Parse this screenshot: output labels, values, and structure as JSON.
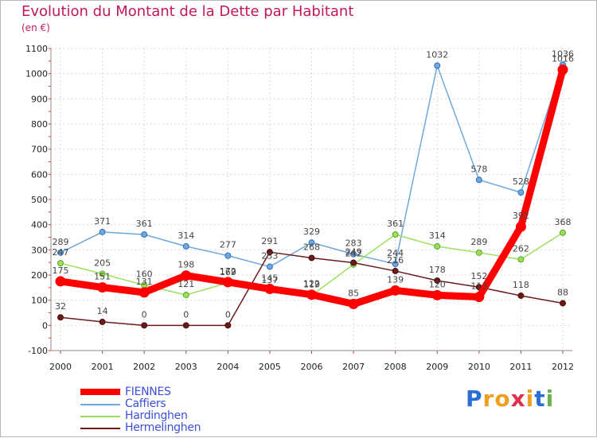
{
  "title": "Evolution du Montant de la Dette par Habitant",
  "subtitle": "(en €)",
  "logo": {
    "text": "Proxiti",
    "letter_colors": [
      "#2a6fd6",
      "#f0a020",
      "#f0a020",
      "#e03050",
      "#f0a020",
      "#2a6fd6",
      "#6ab04c"
    ]
  },
  "chart_data": {
    "type": "line",
    "title": "Evolution du Montant de la Dette par Habitant",
    "ylabel": "(en €)",
    "xlabel": "",
    "ylim": [
      -100,
      1100
    ],
    "yticks": [
      -100,
      0,
      100,
      200,
      300,
      400,
      500,
      600,
      700,
      800,
      900,
      1000,
      1100
    ],
    "x": [
      "2000",
      "2001",
      "2002",
      "2003",
      "2004",
      "2005",
      "2006",
      "2007",
      "2008",
      "2009",
      "2010",
      "2011",
      "2012"
    ],
    "grid": true,
    "legend_position": "bottom-left",
    "series": [
      {
        "name": "FIENNES",
        "color": "#ff0000",
        "values": [
          175,
          151,
          131,
          198,
          172,
          145,
          122,
          85,
          139,
          120,
          113,
          392,
          1016
        ]
      },
      {
        "name": "Caffiers",
        "color": "#6fa8dc",
        "values": [
          289,
          371,
          361,
          314,
          277,
          233,
          329,
          283,
          244,
          1032,
          578,
          528,
          1036
        ]
      },
      {
        "name": "Hardinghen",
        "color": "#9be05a",
        "values": [
          247,
          205,
          160,
          121,
          169,
          137,
          119,
          242,
          361,
          314,
          289,
          262,
          368
        ]
      },
      {
        "name": "Hermelinghen",
        "color": "#6b1a1a",
        "values": [
          32,
          14,
          0,
          0,
          0,
          291,
          268,
          249,
          216,
          178,
          152,
          118,
          88
        ]
      }
    ]
  }
}
